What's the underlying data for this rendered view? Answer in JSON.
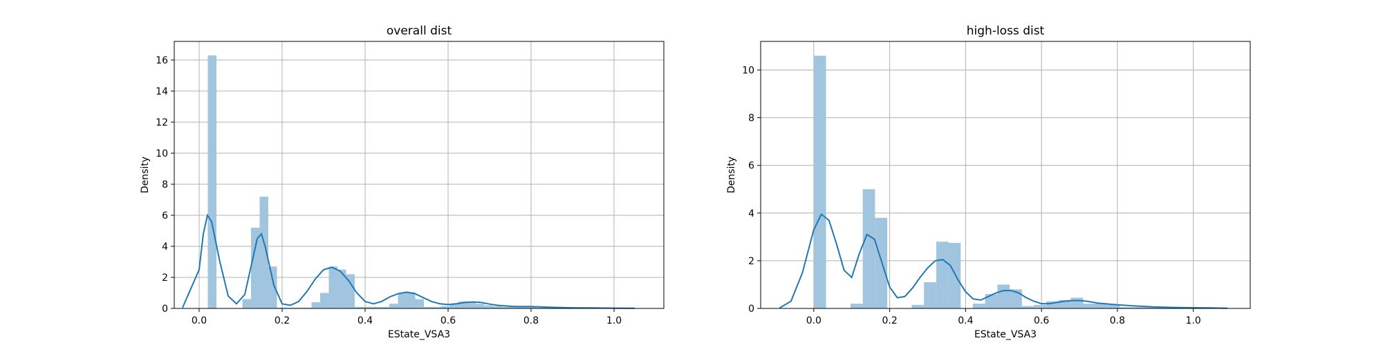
{
  "chart_data": [
    {
      "type": "bar",
      "title": "overall dist",
      "xlabel": "EState_VSA3",
      "ylabel": "Density",
      "xlim": [
        -0.06,
        1.12
      ],
      "ylim": [
        0,
        17.2
      ],
      "xticks": [
        0.0,
        0.2,
        0.4,
        0.6,
        0.8,
        1.0
      ],
      "xtick_labels": [
        "0.0",
        "0.2",
        "0.4",
        "0.6",
        "0.8",
        "1.0"
      ],
      "yticks": [
        0,
        2,
        4,
        6,
        8,
        10,
        12,
        14,
        16
      ],
      "ytick_labels": [
        "0",
        "2",
        "4",
        "6",
        "8",
        "10",
        "12",
        "14",
        "16"
      ],
      "grid": true,
      "histogram": {
        "bin_edges": [
          0.0,
          0.0208,
          0.0417,
          0.0625,
          0.0833,
          0.1042,
          0.125,
          0.1458,
          0.1667,
          0.1875,
          0.2083,
          0.2292,
          0.25,
          0.2708,
          0.2917,
          0.3125,
          0.3333,
          0.3542,
          0.375,
          0.3958,
          0.4167,
          0.4375,
          0.4583,
          0.4792,
          0.5,
          0.5208,
          0.5417,
          0.5625,
          0.5833,
          0.6042,
          0.625,
          0.6458,
          0.6667,
          0.6875,
          0.7083,
          0.7292,
          0.75,
          0.7708,
          0.7917,
          0.8125,
          0.8333,
          0.8542,
          0.875,
          0.8958,
          0.9167,
          0.9375,
          0.9583,
          0.9792,
          1.0
        ],
        "density": [
          0.0,
          16.3,
          0.0,
          0.0,
          0.0,
          0.6,
          5.2,
          7.2,
          2.7,
          0.05,
          0.05,
          0.05,
          0.05,
          0.4,
          1.0,
          2.7,
          2.5,
          2.2,
          0.1,
          0.1,
          0.1,
          0.1,
          0.3,
          1.0,
          1.05,
          0.6,
          0.1,
          0.1,
          0.15,
          0.3,
          0.45,
          0.45,
          0.3,
          0.2,
          0.15,
          0.1,
          0.1,
          0.1,
          0.1,
          0.05,
          0.05,
          0.05,
          0.05,
          0.05,
          0.05,
          0.05,
          0.05,
          0.05
        ]
      },
      "kde": {
        "x": [
          -0.04,
          0.0,
          0.01,
          0.02,
          0.03,
          0.05,
          0.07,
          0.09,
          0.11,
          0.13,
          0.14,
          0.15,
          0.16,
          0.18,
          0.2,
          0.22,
          0.24,
          0.26,
          0.28,
          0.3,
          0.32,
          0.34,
          0.36,
          0.38,
          0.4,
          0.42,
          0.44,
          0.46,
          0.48,
          0.5,
          0.52,
          0.54,
          0.56,
          0.58,
          0.6,
          0.62,
          0.64,
          0.66,
          0.68,
          0.7,
          0.72,
          0.76,
          0.8,
          0.85,
          0.9,
          0.95,
          1.0,
          1.05
        ],
        "y": [
          0.05,
          2.5,
          4.8,
          6.0,
          5.6,
          3.0,
          0.8,
          0.3,
          0.9,
          3.3,
          4.5,
          4.8,
          3.9,
          1.5,
          0.3,
          0.2,
          0.45,
          1.1,
          1.9,
          2.5,
          2.65,
          2.4,
          1.8,
          1.0,
          0.45,
          0.3,
          0.45,
          0.75,
          0.95,
          1.05,
          0.95,
          0.7,
          0.45,
          0.3,
          0.25,
          0.3,
          0.38,
          0.42,
          0.38,
          0.28,
          0.2,
          0.12,
          0.12,
          0.07,
          0.04,
          0.03,
          0.02,
          0.01
        ]
      }
    },
    {
      "type": "bar",
      "title": "high-loss dist",
      "xlabel": "EState_VSA3",
      "ylabel": "Density",
      "xlim": [
        -0.14,
        1.15
      ],
      "ylim": [
        0,
        11.2
      ],
      "xticks": [
        0.0,
        0.2,
        0.4,
        0.6,
        0.8,
        1.0
      ],
      "xtick_labels": [
        "0.0",
        "0.2",
        "0.4",
        "0.6",
        "0.8",
        "1.0"
      ],
      "yticks": [
        0,
        2,
        4,
        6,
        8,
        10
      ],
      "ytick_labels": [
        "0",
        "2",
        "4",
        "6",
        "8",
        "10"
      ],
      "grid": true,
      "histogram": {
        "bin_edges": [
          0.0,
          0.0323,
          0.0645,
          0.0968,
          0.129,
          0.1613,
          0.1935,
          0.2258,
          0.2581,
          0.2903,
          0.3226,
          0.3548,
          0.3871,
          0.4194,
          0.4516,
          0.4839,
          0.5161,
          0.5484,
          0.5806,
          0.6129,
          0.6452,
          0.6774,
          0.7097,
          0.7419,
          0.7742,
          0.8065,
          0.8387,
          0.871,
          0.9032,
          0.9355,
          0.9677,
          1.0
        ],
        "density": [
          10.6,
          0.0,
          0.0,
          0.2,
          5.0,
          3.8,
          0.0,
          0.0,
          0.15,
          1.1,
          2.8,
          2.75,
          0.0,
          0.2,
          0.6,
          1.0,
          0.8,
          0.1,
          0.15,
          0.3,
          0.35,
          0.45,
          0.2,
          0.2,
          0.15,
          0.05,
          0.05,
          0.05,
          0.05,
          0.05,
          0.05
        ]
      },
      "kde": {
        "x": [
          -0.09,
          -0.06,
          -0.03,
          0.0,
          0.02,
          0.04,
          0.06,
          0.08,
          0.1,
          0.12,
          0.14,
          0.16,
          0.18,
          0.2,
          0.22,
          0.24,
          0.26,
          0.28,
          0.3,
          0.32,
          0.34,
          0.36,
          0.38,
          0.4,
          0.42,
          0.44,
          0.46,
          0.48,
          0.5,
          0.52,
          0.54,
          0.56,
          0.58,
          0.6,
          0.62,
          0.64,
          0.66,
          0.68,
          0.7,
          0.72,
          0.75,
          0.8,
          0.85,
          0.9,
          0.95,
          1.0,
          1.05,
          1.09
        ],
        "y": [
          0.02,
          0.3,
          1.5,
          3.3,
          3.95,
          3.7,
          2.7,
          1.6,
          1.3,
          2.3,
          3.1,
          2.9,
          1.9,
          0.9,
          0.45,
          0.5,
          0.85,
          1.3,
          1.7,
          2.0,
          2.05,
          1.8,
          1.2,
          0.7,
          0.4,
          0.35,
          0.5,
          0.65,
          0.75,
          0.75,
          0.65,
          0.45,
          0.3,
          0.2,
          0.2,
          0.25,
          0.3,
          0.33,
          0.33,
          0.3,
          0.22,
          0.15,
          0.1,
          0.06,
          0.04,
          0.03,
          0.02,
          0.01
        ]
      }
    }
  ]
}
